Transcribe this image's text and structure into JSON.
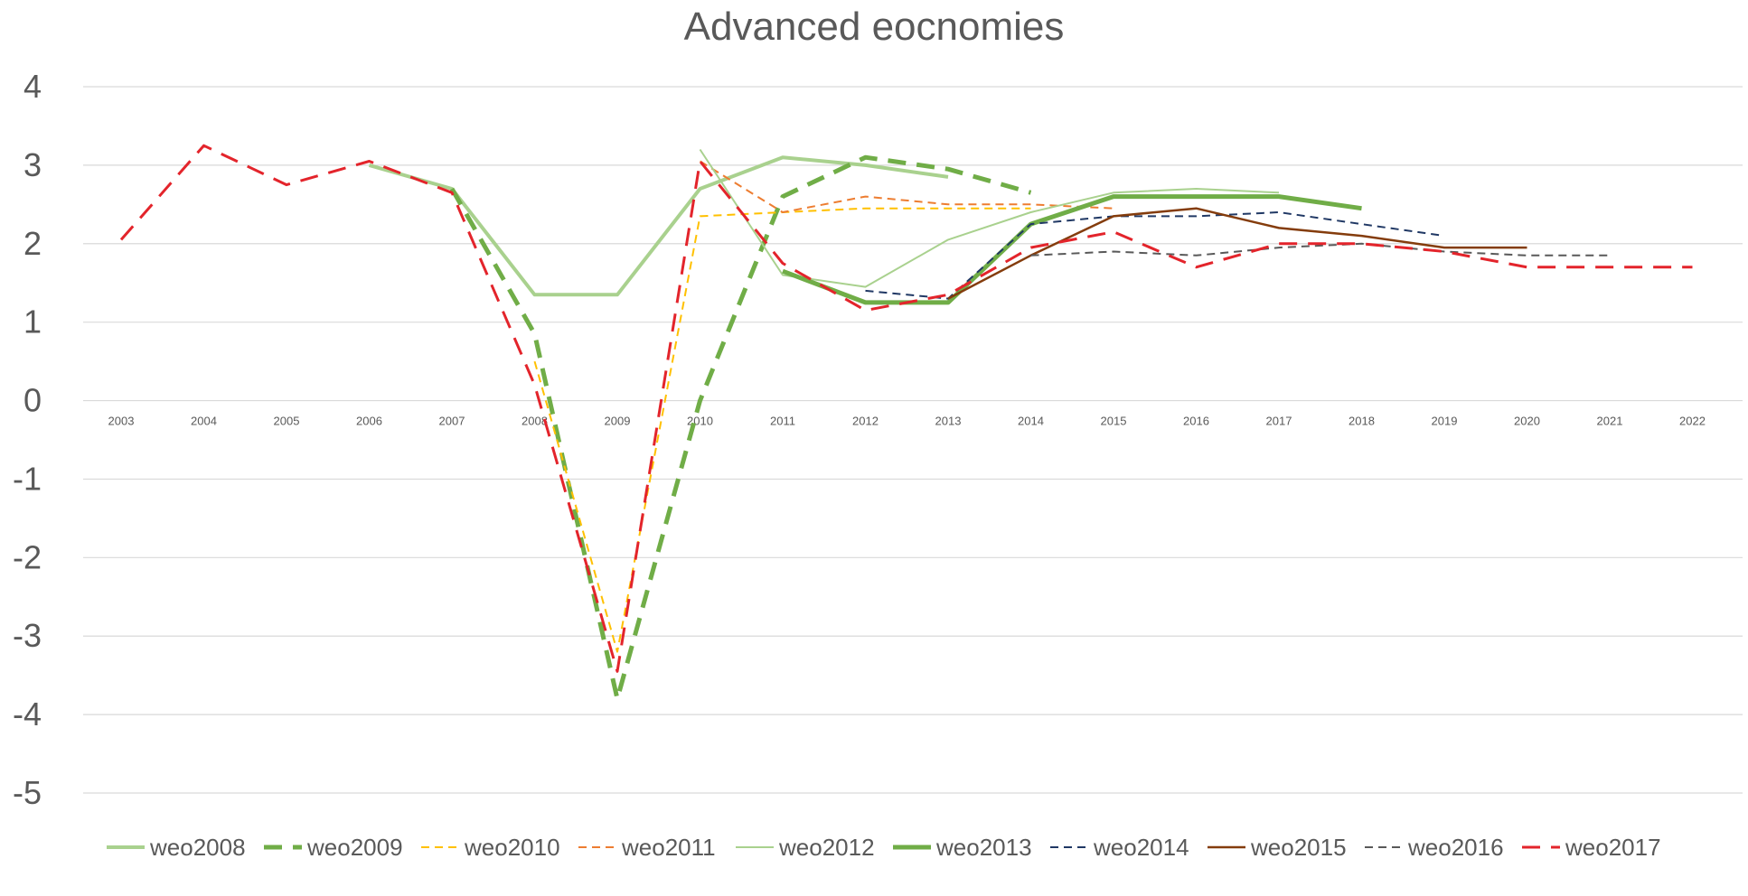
{
  "chart_data": {
    "type": "line",
    "title": "Advanced eocnomies",
    "xlabel": "",
    "ylabel": "",
    "x": [
      "2003",
      "2004",
      "2005",
      "2006",
      "2007",
      "2008",
      "2009",
      "2010",
      "2011",
      "2012",
      "2013",
      "2014",
      "2015",
      "2016",
      "2017",
      "2018",
      "2019",
      "2020",
      "2021",
      "2022"
    ],
    "yticks": [
      "4",
      "3",
      "2",
      "1",
      "0",
      "-1",
      "-2",
      "-3",
      "-4",
      "-5"
    ],
    "ylim": [
      -5,
      4
    ],
    "grid": true,
    "legend_position": "bottom",
    "series": [
      {
        "name": "weo2008",
        "color": "#a9d18e",
        "dash": "solid",
        "width": 4,
        "values": [
          null,
          null,
          null,
          3.0,
          2.7,
          1.35,
          1.35,
          2.7,
          3.1,
          3.0,
          2.85,
          null,
          null,
          null,
          null,
          null,
          null,
          null,
          null,
          null
        ]
      },
      {
        "name": "weo2009",
        "color": "#70ad47",
        "dash": "long",
        "width": 5,
        "values": [
          null,
          null,
          null,
          null,
          2.7,
          0.85,
          -3.8,
          0.0,
          2.6,
          3.1,
          2.95,
          2.65,
          null,
          null,
          null,
          null,
          null,
          null,
          null,
          null
        ]
      },
      {
        "name": "weo2010",
        "color": "#ffc000",
        "dash": "short",
        "width": 2,
        "values": [
          null,
          null,
          null,
          null,
          null,
          0.5,
          -3.2,
          2.35,
          2.4,
          2.45,
          2.45,
          2.45,
          null,
          null,
          null,
          null,
          null,
          null,
          null,
          null
        ]
      },
      {
        "name": "weo2011",
        "color": "#ed7d31",
        "dash": "short",
        "width": 2,
        "values": [
          null,
          null,
          null,
          null,
          null,
          null,
          null,
          3.05,
          2.4,
          2.6,
          2.5,
          2.5,
          2.45,
          null,
          null,
          null,
          null,
          null,
          null,
          null
        ]
      },
      {
        "name": "weo2012",
        "color": "#a9d18e",
        "dash": "solid",
        "width": 2,
        "values": [
          null,
          null,
          null,
          null,
          null,
          null,
          null,
          3.2,
          1.6,
          1.45,
          2.05,
          2.4,
          2.65,
          2.7,
          2.65,
          null,
          null,
          null,
          null,
          null
        ]
      },
      {
        "name": "weo2013",
        "color": "#70ad47",
        "dash": "solid",
        "width": 5,
        "values": [
          null,
          null,
          null,
          null,
          null,
          null,
          null,
          null,
          1.65,
          1.25,
          1.25,
          2.25,
          2.6,
          2.6,
          2.6,
          2.45,
          null,
          null,
          null,
          null
        ]
      },
      {
        "name": "weo2014",
        "color": "#203864",
        "dash": "short",
        "width": 2,
        "values": [
          null,
          null,
          null,
          null,
          null,
          null,
          null,
          null,
          null,
          1.4,
          1.3,
          2.25,
          2.35,
          2.35,
          2.4,
          2.25,
          2.1,
          null,
          null,
          null
        ]
      },
      {
        "name": "weo2015",
        "color": "#843c0c",
        "dash": "solid",
        "width": 2.5,
        "values": [
          null,
          null,
          null,
          null,
          null,
          null,
          null,
          null,
          null,
          null,
          1.3,
          1.85,
          2.35,
          2.45,
          2.2,
          2.1,
          1.95,
          1.95,
          null,
          null
        ]
      },
      {
        "name": "weo2016",
        "color": "#595959",
        "dash": "short",
        "width": 2,
        "values": [
          null,
          null,
          null,
          null,
          null,
          null,
          null,
          null,
          null,
          null,
          null,
          1.85,
          1.9,
          1.85,
          1.95,
          2.0,
          1.9,
          1.85,
          1.85,
          null
        ]
      },
      {
        "name": "weo2017",
        "color": "#e3242b",
        "dash": "long",
        "width": 3,
        "values": [
          2.05,
          3.25,
          2.75,
          3.05,
          2.65,
          0.2,
          -3.45,
          3.05,
          1.75,
          1.15,
          1.35,
          1.95,
          2.15,
          1.7,
          2.0,
          2.0,
          1.9,
          1.7,
          1.7,
          1.7
        ]
      }
    ]
  }
}
